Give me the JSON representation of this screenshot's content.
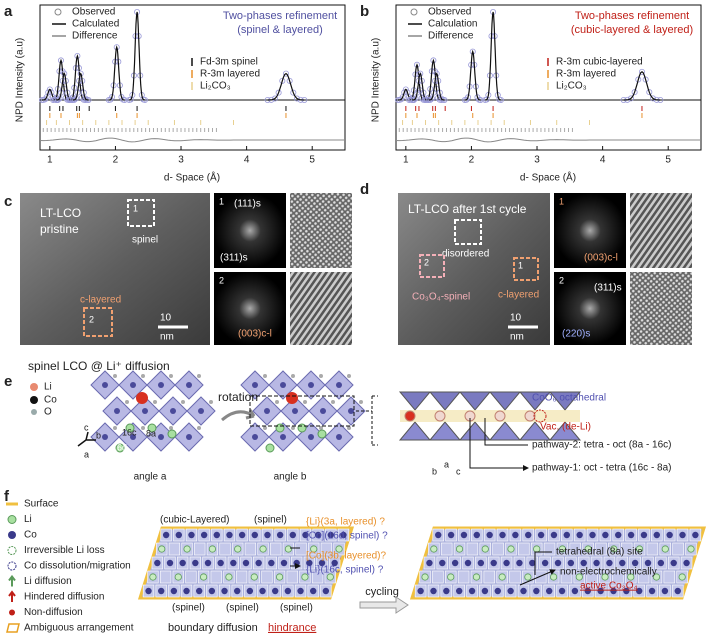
{
  "a": {
    "label": "a",
    "ylabel": "NPD Intensity (a.u)",
    "xlabel": "d- Space (Å)",
    "xticks": [
      1,
      2,
      3,
      4,
      5
    ],
    "xlim": [
      0.85,
      5.5
    ],
    "legend": [
      "Observed",
      "Calculated",
      "Difference"
    ],
    "title": [
      "Two-phases refinement",
      "(spinel & layered)"
    ],
    "phases": [
      "Fd-3m spinel",
      "R-3m layered",
      "Li₂CO₃"
    ],
    "peaks": {
      "x": [
        1.0,
        1.17,
        1.22,
        1.42,
        1.47,
        2.02,
        2.33,
        4.6
      ],
      "values": [
        0.12,
        0.45,
        0.3,
        0.5,
        0.3,
        0.6,
        1.0,
        0.3
      ]
    }
  },
  "b": {
    "label": "b",
    "ylabel": "NPD Intensity (a.u)",
    "xlabel": "d- Space (Å)",
    "xticks": [
      1,
      2,
      3,
      4,
      5
    ],
    "xlim": [
      0.85,
      5.5
    ],
    "legend": [
      "Observed",
      "Calculation",
      "Difference"
    ],
    "title": [
      "Two-phases refinement",
      "(cubic-layered & layered)"
    ],
    "phases": [
      "R-3m cubic-layered",
      "R-3m layered",
      "Li₂CO₃"
    ],
    "peaks": {
      "x": [
        1.0,
        1.17,
        1.22,
        1.42,
        1.47,
        2.02,
        2.33,
        4.6
      ],
      "values": [
        0.12,
        0.4,
        0.3,
        0.45,
        0.3,
        0.55,
        1.0,
        0.32
      ]
    }
  },
  "c": {
    "label": "c",
    "image_text": [
      "LT-LCO",
      "pristine"
    ],
    "regions": [
      "spinel",
      "c-layered"
    ],
    "boxes": [
      "1",
      "2"
    ],
    "scale": [
      "10",
      "nm"
    ],
    "fft1": [
      "(111)s",
      "(311)s"
    ],
    "fft2": [
      "(003)c-l"
    ]
  },
  "d": {
    "label": "d",
    "image_text": "LT-LCO after 1st cycle",
    "regions": [
      "disordered",
      "Co₃O₄-spinel",
      "c-layered"
    ],
    "boxes": [
      "1",
      "2"
    ],
    "scale": [
      "10",
      "nm"
    ],
    "fft1": [
      "(003)c-l"
    ],
    "fft2": [
      "(311)s",
      "(220)s"
    ]
  },
  "e": {
    "label": "e",
    "title": "spinel LCO @ Li⁺ diffusion",
    "legend": [
      "Li",
      "Co",
      "O"
    ],
    "sites": [
      "16c",
      "8a",
      "16d"
    ],
    "axes": [
      "c",
      "b",
      "a"
    ],
    "views": [
      "angle a",
      "angle b"
    ],
    "rotation": "rotation",
    "octahedral": "CoO₆ octahedral",
    "vacancy": "Vac. (de-Li)",
    "pathways": [
      "pathway-2: tetra - oct (8a - 16c)",
      "pathway-1: oct - tetra (16c - 8a)"
    ]
  },
  "f": {
    "label": "f",
    "legend": [
      "Surface",
      "Li",
      "Co",
      "Irreversible Li loss",
      "Co dissolution/migration",
      "Li diffusion",
      "Hindered diffusion",
      "Non-diffusion",
      "Ambiguous arrangement"
    ],
    "top": [
      "(cubic-Layered)",
      "(spinel)"
    ],
    "bottom": [
      "(spinel)",
      "(spinel)",
      "(spinel)"
    ],
    "notes": [
      "{Li}(3a, layered) ?",
      "[Co](16d, spinel) ?",
      "[Co](3b, layered)?",
      "{Li}(16c, spinel) ?"
    ],
    "caption": [
      "boundary diffusion",
      "hindrance"
    ],
    "cycling": "cycling",
    "right": [
      "tetrahedral (8a) site",
      "non-electrochemically",
      "active Co₃O₄"
    ]
  }
}
